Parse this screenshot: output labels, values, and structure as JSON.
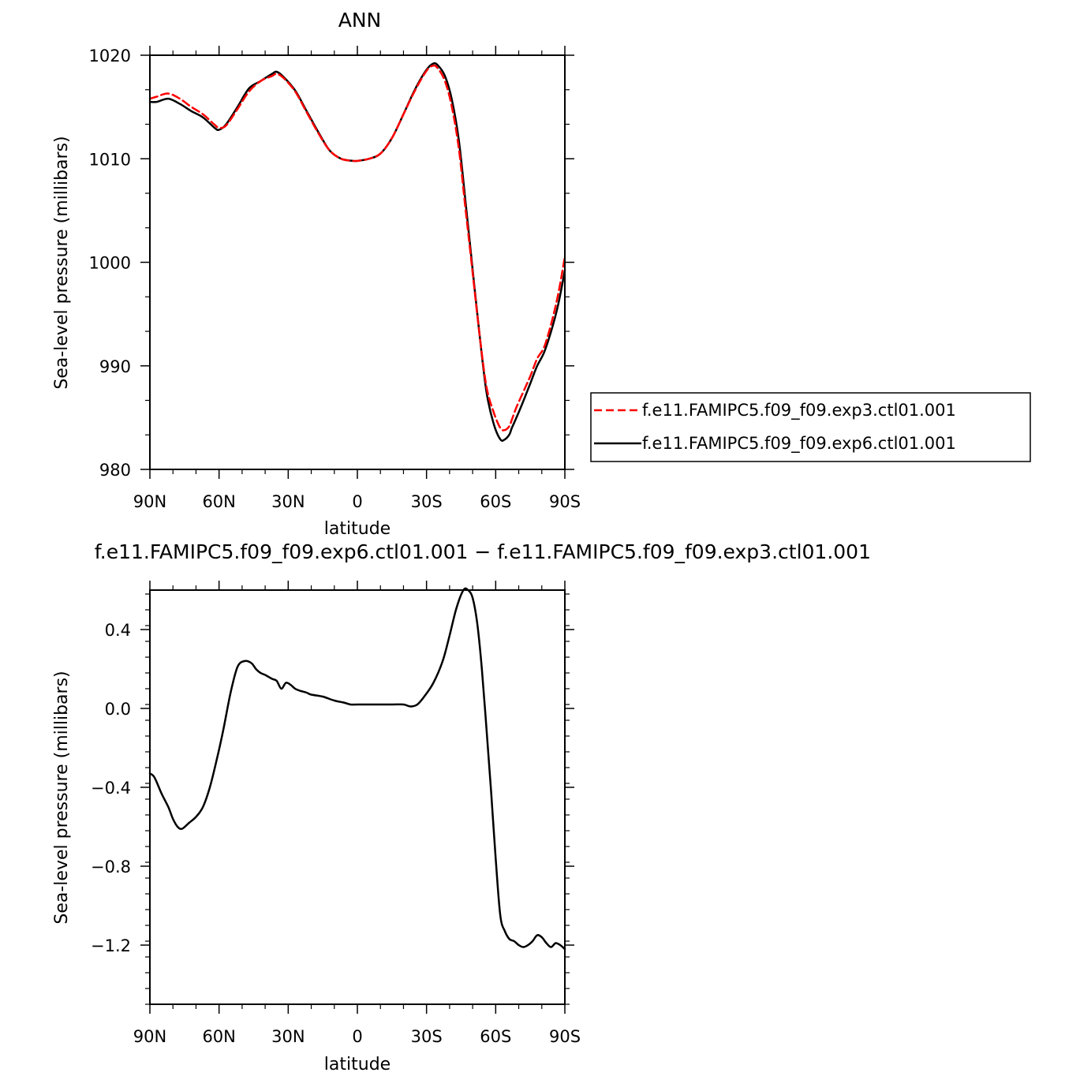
{
  "chart_data": [
    {
      "type": "line",
      "title": "ANN",
      "xlabel": "latitude",
      "ylabel": "Sea-level pressure (millibars)",
      "xlim": [
        90,
        -90
      ],
      "ylim": [
        980,
        1020
      ],
      "x_ticks": [
        90,
        60,
        30,
        0,
        -30,
        -60,
        -90
      ],
      "x_tick_labels": [
        "90N",
        "60N",
        "30N",
        "0",
        "30S",
        "60S",
        "90S"
      ],
      "y_ticks": [
        980,
        990,
        1000,
        1010,
        1020
      ],
      "y_tick_labels": [
        "980",
        "990",
        "1000",
        "1010",
        "1020"
      ],
      "legend_position": "right",
      "series": [
        {
          "name": "f.e11.FAMIPC5.f09_f09.exp3.ctl01.001",
          "color": "#ff0000",
          "dash": "dashed",
          "x": [
            90,
            87,
            82,
            77,
            72,
            67,
            62,
            60,
            57,
            52,
            47,
            42,
            37,
            35,
            32,
            27,
            22,
            17,
            12,
            7,
            2,
            0,
            -5,
            -10,
            -15,
            -20,
            -25,
            -30,
            -33,
            -35,
            -38,
            -41,
            -44,
            -47,
            -50,
            -53,
            -56,
            -59,
            -62,
            -64,
            -66,
            -67,
            -69,
            -72,
            -75,
            -78,
            -81,
            -84,
            -87,
            -90
          ],
          "y": [
            1015.8,
            1016.0,
            1016.3,
            1015.8,
            1015.0,
            1014.3,
            1013.3,
            1013.0,
            1013.2,
            1014.8,
            1016.5,
            1017.5,
            1018.0,
            1018.2,
            1017.8,
            1016.5,
            1014.5,
            1012.5,
            1010.8,
            1010.0,
            1009.8,
            1009.8,
            1010.0,
            1010.5,
            1012.0,
            1014.3,
            1016.6,
            1018.5,
            1019.0,
            1018.7,
            1017.5,
            1015.0,
            1011.0,
            1005.0,
            999.0,
            993.0,
            988.0,
            985.6,
            984.0,
            983.8,
            984.2,
            984.8,
            986.0,
            987.5,
            989.0,
            990.7,
            991.8,
            994.0,
            996.8,
            1000.5
          ]
        },
        {
          "name": "f.e11.FAMIPC5.f09_f09.exp6.ctl01.001",
          "color": "#000000",
          "dash": "solid",
          "x": [
            90,
            87,
            82,
            77,
            72,
            67,
            62,
            60,
            57,
            52,
            47,
            42,
            37,
            35,
            32,
            27,
            22,
            17,
            12,
            7,
            2,
            0,
            -5,
            -10,
            -15,
            -20,
            -25,
            -30,
            -33,
            -35,
            -38,
            -41,
            -44,
            -47,
            -50,
            -53,
            -56,
            -59,
            -62,
            -64,
            -66,
            -67,
            -69,
            -72,
            -75,
            -78,
            -81,
            -84,
            -87,
            -90
          ],
          "y": [
            1015.5,
            1015.5,
            1015.8,
            1015.3,
            1014.6,
            1014.0,
            1013.0,
            1012.8,
            1013.3,
            1015.0,
            1016.8,
            1017.5,
            1018.2,
            1018.4,
            1017.9,
            1016.6,
            1014.6,
            1012.6,
            1010.8,
            1010.0,
            1009.8,
            1009.8,
            1010.0,
            1010.5,
            1012.0,
            1014.3,
            1016.7,
            1018.6,
            1019.2,
            1019.0,
            1018.0,
            1015.7,
            1011.8,
            1005.7,
            999.3,
            993.0,
            987.5,
            984.5,
            982.9,
            982.9,
            983.4,
            984.0,
            985.0,
            986.6,
            988.3,
            990.0,
            991.3,
            993.3,
            995.8,
            999.2
          ]
        }
      ]
    },
    {
      "type": "line",
      "title": "f.e11.FAMIPC5.f09_f09.exp6.ctl01.001  −  f.e11.FAMIPC5.f09_f09.exp3.ctl01.001",
      "xlabel": "latitude",
      "ylabel": "Sea-level pressure (millibars)",
      "xlim": [
        90,
        -90
      ],
      "ylim": [
        -1.5,
        0.6
      ],
      "x_ticks": [
        90,
        60,
        30,
        0,
        -30,
        -60,
        -90
      ],
      "x_tick_labels": [
        "90N",
        "60N",
        "30N",
        "0",
        "30S",
        "60S",
        "90S"
      ],
      "y_ticks": [
        -1.2,
        -0.8,
        -0.4,
        0.0,
        0.4
      ],
      "y_tick_labels": [
        "−1.2",
        "−0.8",
        "−0.4",
        "0.0",
        "0.4"
      ],
      "series": [
        {
          "color": "#000000",
          "dash": "solid",
          "x": [
            90,
            88,
            85,
            82,
            80,
            78,
            76,
            73,
            70,
            67,
            64,
            61,
            58,
            55,
            52,
            49,
            46,
            44,
            42,
            40,
            37,
            35,
            33,
            31,
            29,
            27,
            25,
            22,
            20,
            15,
            10,
            6,
            3,
            0,
            -5,
            -10,
            -15,
            -20,
            -23,
            -26,
            -29,
            -33,
            -37,
            -40,
            -43,
            -46,
            -48,
            -50,
            -52,
            -54,
            -56,
            -58,
            -60,
            -62,
            -64,
            -66,
            -68,
            -70,
            -72,
            -74,
            -76,
            -78,
            -80,
            -82,
            -84,
            -86,
            -88,
            -90
          ],
          "y": [
            -0.33,
            -0.35,
            -0.43,
            -0.5,
            -0.56,
            -0.6,
            -0.61,
            -0.58,
            -0.55,
            -0.5,
            -0.4,
            -0.26,
            -0.1,
            0.08,
            0.21,
            0.24,
            0.23,
            0.2,
            0.18,
            0.17,
            0.15,
            0.14,
            0.1,
            0.13,
            0.12,
            0.1,
            0.09,
            0.08,
            0.07,
            0.06,
            0.04,
            0.03,
            0.02,
            0.02,
            0.02,
            0.02,
            0.02,
            0.02,
            0.01,
            0.02,
            0.06,
            0.13,
            0.24,
            0.37,
            0.51,
            0.6,
            0.6,
            0.56,
            0.43,
            0.2,
            -0.1,
            -0.42,
            -0.76,
            -1.05,
            -1.13,
            -1.17,
            -1.18,
            -1.2,
            -1.21,
            -1.2,
            -1.18,
            -1.15,
            -1.16,
            -1.19,
            -1.21,
            -1.19,
            -1.2,
            -1.22
          ]
        }
      ]
    }
  ]
}
